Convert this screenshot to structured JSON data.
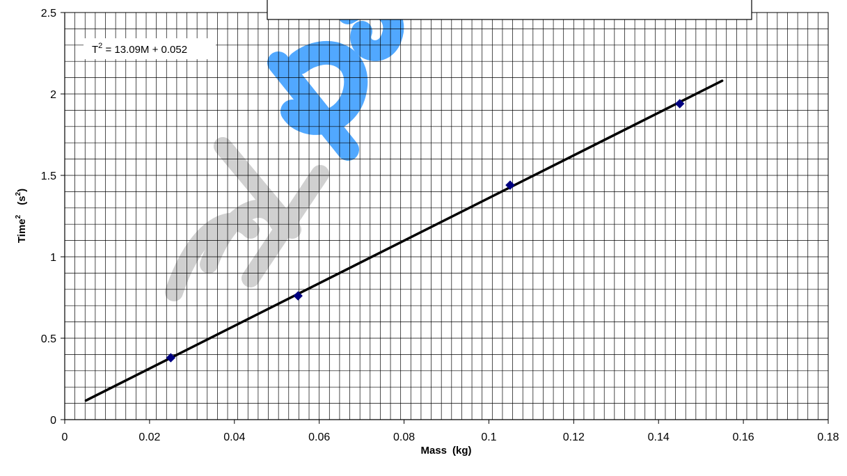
{
  "chart_data": {
    "type": "scatter",
    "x_label": {
      "base": "Mass",
      "unit": "(kg)"
    },
    "y_label": {
      "base": "Time",
      "base_sup": "2",
      "unit": "(s",
      "unit_sup": "2",
      "unit_close": ")"
    },
    "xlim": [
      0,
      0.18
    ],
    "ylim": [
      0,
      2.5
    ],
    "x_ticks": [
      "0",
      "0.02",
      "0.04",
      "0.06",
      "0.08",
      "0.1",
      "0.12",
      "0.14",
      "0.16",
      "0.18"
    ],
    "y_ticks": [
      "0",
      "0.5",
      "1",
      "1.5",
      "2",
      "2.5"
    ],
    "grid": true,
    "series": [
      {
        "points": [
          {
            "x": 0.025,
            "y": 0.38
          },
          {
            "x": 0.055,
            "y": 0.76
          },
          {
            "x": 0.105,
            "y": 1.44
          },
          {
            "x": 0.145,
            "y": 1.94
          }
        ],
        "marker": "diamond",
        "marker_color": "#000080"
      }
    ],
    "trendline": {
      "slope": 13.09,
      "intercept": 0.052,
      "x_start": 0.005,
      "x_end": 0.155,
      "color": "#000000"
    },
    "equation_label": {
      "lead": "T",
      "sup": "2",
      "rest": " = 13.09M + 0.052"
    },
    "watermark_text": "mype",
    "watermark_colors": [
      "#cccccc",
      "#3399ff"
    ]
  }
}
